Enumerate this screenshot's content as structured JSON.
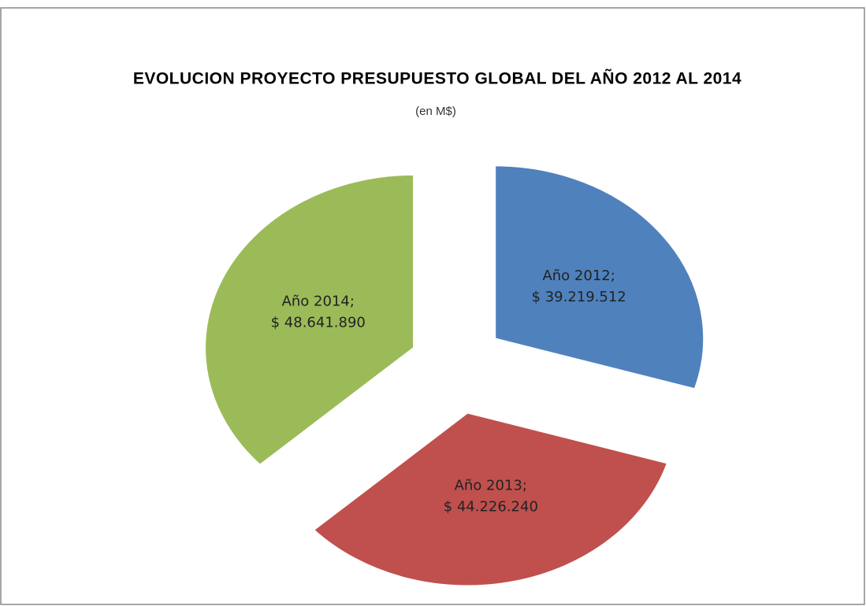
{
  "chart_data": {
    "type": "pie",
    "title": "EVOLUCION PROYECTO PRESUPUESTO GLOBAL DEL AÑO 2012 AL 2014",
    "subtitle": "(en M$)",
    "categories": [
      "Año 2012;",
      "Año 2013;",
      "Año 2014;"
    ],
    "values": [
      39219512,
      44226240,
      48641890
    ],
    "value_labels": [
      "$ 39.219.512",
      "$ 44.226.240",
      "$ 48.641.890"
    ],
    "colors": [
      "#4f81bd",
      "#c0504d",
      "#9bbb59"
    ]
  }
}
